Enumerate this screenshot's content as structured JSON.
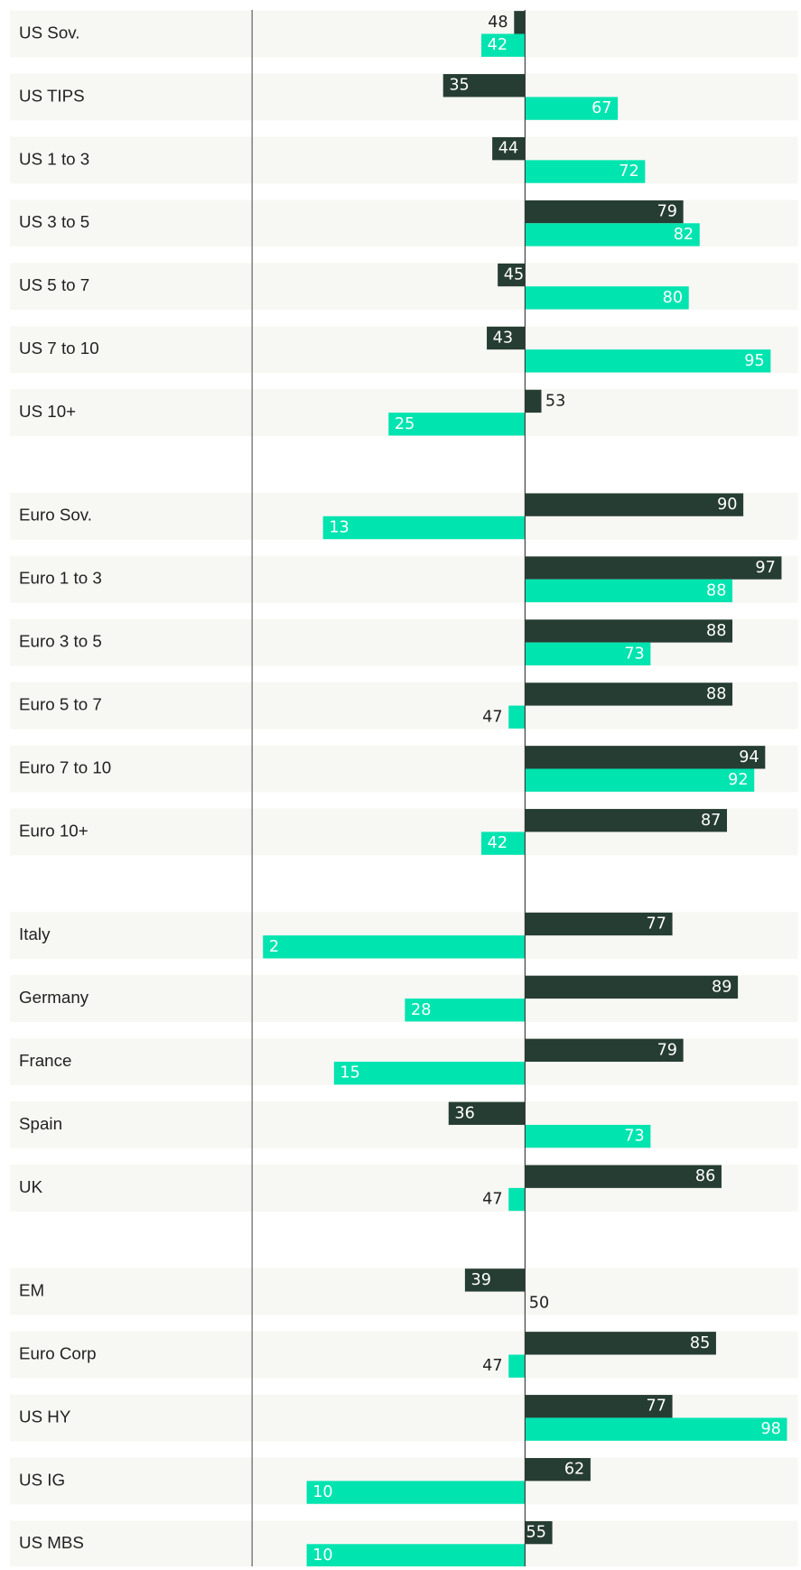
{
  "chart_data": {
    "type": "diverging-bar",
    "categories": [
      "US Sov.",
      "US TIPS",
      "US 1 to 3",
      "US 3 to 5",
      "US 5 to 7",
      "US 7 to 10",
      "US 10+",
      null,
      "Euro Sov.",
      "Euro 1 to 3",
      "Euro 3 to 5",
      "Euro 5 to 7",
      "Euro 7 to 10",
      "Euro 10+",
      null,
      "Italy",
      "Germany",
      "France",
      "Spain",
      "UK",
      null,
      "EM",
      "Euro Corp",
      "US HY",
      "US IG",
      "US MBS"
    ],
    "series": [
      {
        "color": "#263d33",
        "values": [
          48,
          35,
          44,
          79,
          45,
          43,
          53,
          null,
          90,
          97,
          88,
          88,
          94,
          87,
          null,
          77,
          89,
          79,
          36,
          86,
          null,
          39,
          85,
          77,
          62,
          55
        ]
      },
      {
        "color": "#00e4b0",
        "values": [
          42,
          67,
          72,
          82,
          80,
          95,
          25,
          null,
          13,
          88,
          73,
          47,
          92,
          42,
          null,
          2,
          28,
          15,
          73,
          47,
          null,
          50,
          47,
          98,
          10,
          10
        ]
      }
    ],
    "xlim": [
      0,
      100
    ]
  }
}
